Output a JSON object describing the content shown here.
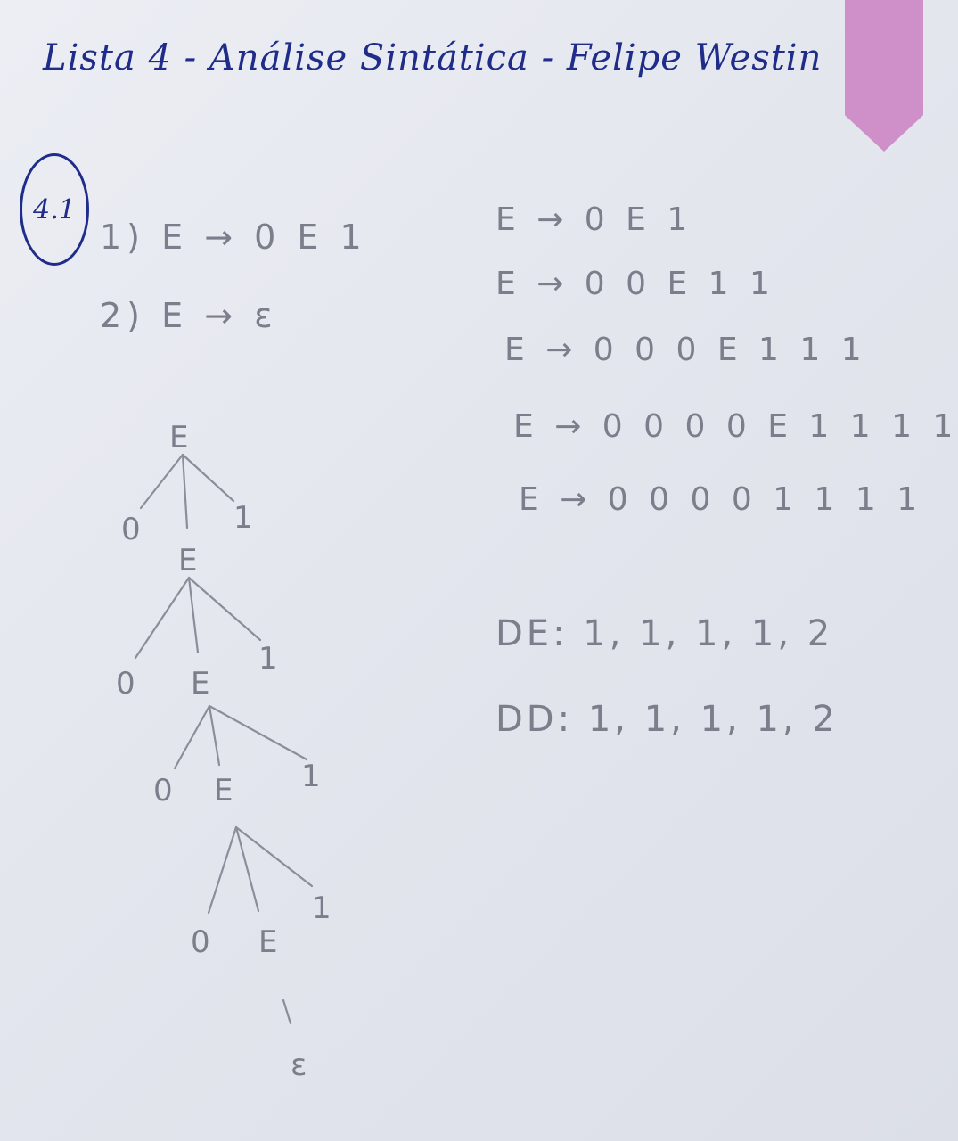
{
  "title": "Lista 4 - Análise Sintática - Felipe Westin",
  "question_number": "4.1",
  "grammar": [
    {
      "number": "1)",
      "rule": "E → 0 E 1"
    },
    {
      "number": "2)",
      "rule": "E → ε"
    }
  ],
  "derivation": [
    "E → 0 E 1",
    "E → 0 0 E 1 1",
    "E → 0 0 0 E 1 1 1",
    "E → 0 0 0 0 E 1 1 1 1",
    "E → 0 0 0 0 1 1 1 1"
  ],
  "derivation_orders": [
    {
      "label": "DE",
      "sequence": "1, 1, 1, 1, 2"
    },
    {
      "label": "DD",
      "sequence": "1, 1, 1, 1, 2"
    }
  ],
  "parse_tree": {
    "root": "E",
    "levels": [
      {
        "left": "0",
        "middle": "E",
        "right": "1"
      },
      {
        "left": "0",
        "middle": "E",
        "right": "1"
      },
      {
        "left": "0",
        "middle": "E",
        "right": "1"
      },
      {
        "left": "0",
        "middle": "E",
        "right": "1"
      }
    ],
    "leaf": "ε"
  },
  "colors": {
    "ink": "#1f2c8a",
    "pencil": "#7b7f8c",
    "bookmark": "#cf8fc8",
    "paper": "#e6e8f0"
  }
}
